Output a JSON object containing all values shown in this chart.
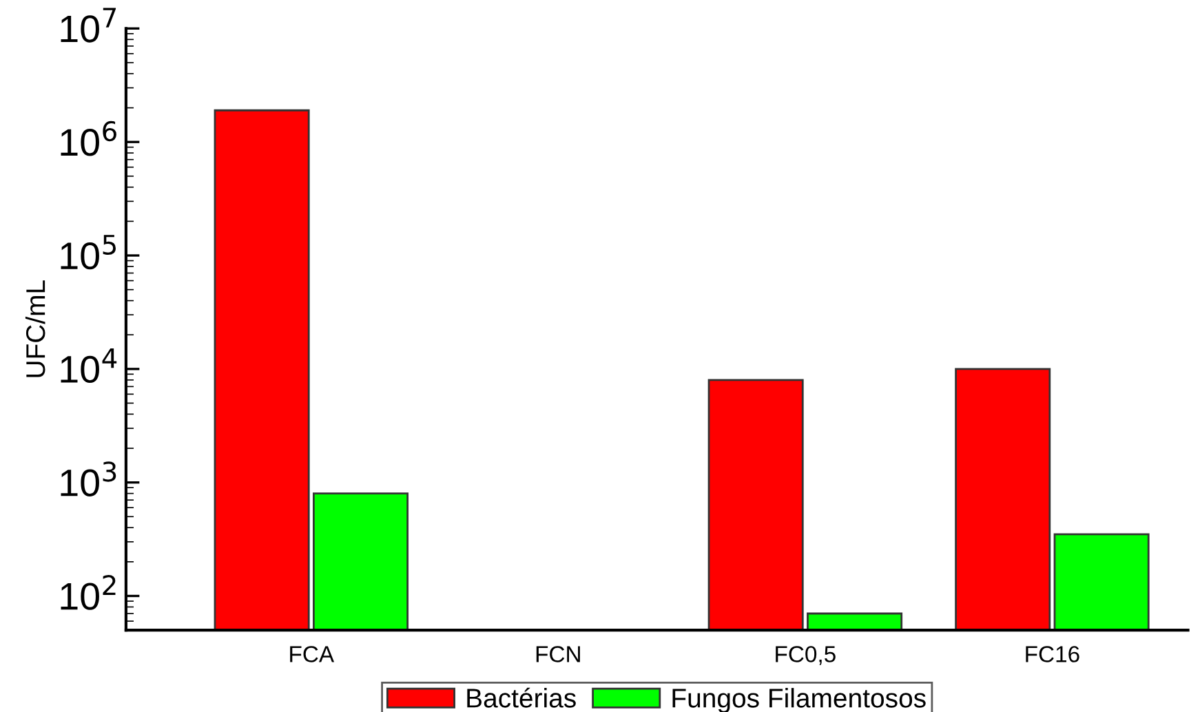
{
  "chart_data": {
    "type": "bar",
    "ylabel": "UFC/mL",
    "log": true,
    "categories": [
      "FCA",
      "FCN",
      "FC0,5",
      "FC16"
    ],
    "series": [
      {
        "name": "Bactérias",
        "color": "#ff0000",
        "values": [
          1900000,
          null,
          8000,
          10000
        ]
      },
      {
        "name": "Fungos Filamentosos",
        "color": "#00ff00",
        "values": [
          800,
          null,
          70,
          350
        ]
      }
    ],
    "ylim": [
      50,
      10000000
    ],
    "yticks": [
      {
        "value": 100,
        "label": "10$^{2}$"
      },
      {
        "value": 1000,
        "label": "10$^{3}$"
      },
      {
        "value": 10000,
        "label": "10$^{4}$"
      },
      {
        "value": 100000,
        "label": "10$^{5}$"
      },
      {
        "value": 1000000,
        "label": "10$^{6}$"
      },
      {
        "value": 10000000,
        "label": "10$^{7}$"
      }
    ],
    "grid": false,
    "legend": "bottom"
  }
}
